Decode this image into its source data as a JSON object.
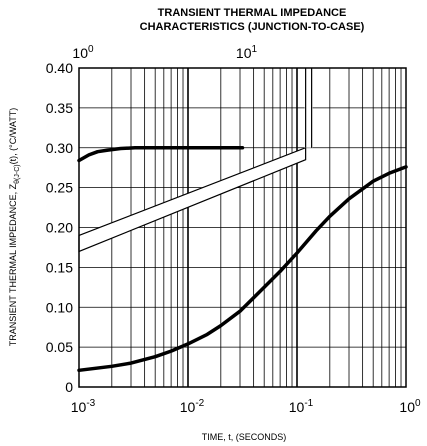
{
  "chart_data": {
    "type": "line",
    "title": "TRANSIENT THERMAL IMPEDANCE",
    "subtitle": "CHARACTERISTICS (JUNCTION-TO-CASE)",
    "xlabel": "TIME, t, (SECONDS)",
    "ylabel_main": "TRANSIENT THERMAL IMPEDANCE, Z",
    "ylabel_sub": "θ(J-C)",
    "ylabel_tail": "(t), (°C/WATT)",
    "x_scale": "log",
    "xlim": [
      0.001,
      1
    ],
    "ylim": [
      0,
      0.4
    ],
    "grid": true,
    "x_ticks": [
      {
        "base": "10",
        "exp": "-3",
        "value": 0.001
      },
      {
        "base": "10",
        "exp": "-2",
        "value": 0.01
      },
      {
        "base": "10",
        "exp": "-1",
        "value": 0.1
      },
      {
        "base": "10",
        "exp": "0",
        "value": 1
      }
    ],
    "y_ticks": [
      "0",
      "0.05",
      "0.10",
      "0.15",
      "0.20",
      "0.25",
      "0.30",
      "0.35",
      "0.40"
    ],
    "y_tick_values": [
      0,
      0.05,
      0.1,
      0.15,
      0.2,
      0.25,
      0.3,
      0.35,
      0.4
    ],
    "top_axis": {
      "xlim": [
        1,
        100
      ],
      "ticks": [
        {
          "base": "10",
          "exp": "0",
          "value": 1
        },
        {
          "base": "10",
          "exp": "1",
          "value": 10
        }
      ],
      "series": {
        "x": [
          1,
          1.15,
          1.3,
          1.5,
          1.8,
          2.2,
          3,
          4,
          6,
          10
        ],
        "y": [
          0.284,
          0.291,
          0.295,
          0.297,
          0.299,
          0.3,
          0.3,
          0.3,
          0.3,
          0.3
        ]
      }
    },
    "series": [
      {
        "x": [
          0.001,
          0.002,
          0.003,
          0.005,
          0.007,
          0.01,
          0.015,
          0.02,
          0.03,
          0.05,
          0.07,
          0.1,
          0.15,
          0.2,
          0.3,
          0.5,
          0.7,
          1.0
        ],
        "y": [
          0.021,
          0.026,
          0.03,
          0.038,
          0.045,
          0.054,
          0.066,
          0.077,
          0.095,
          0.125,
          0.145,
          0.168,
          0.196,
          0.214,
          0.236,
          0.258,
          0.268,
          0.276
        ]
      }
    ]
  }
}
